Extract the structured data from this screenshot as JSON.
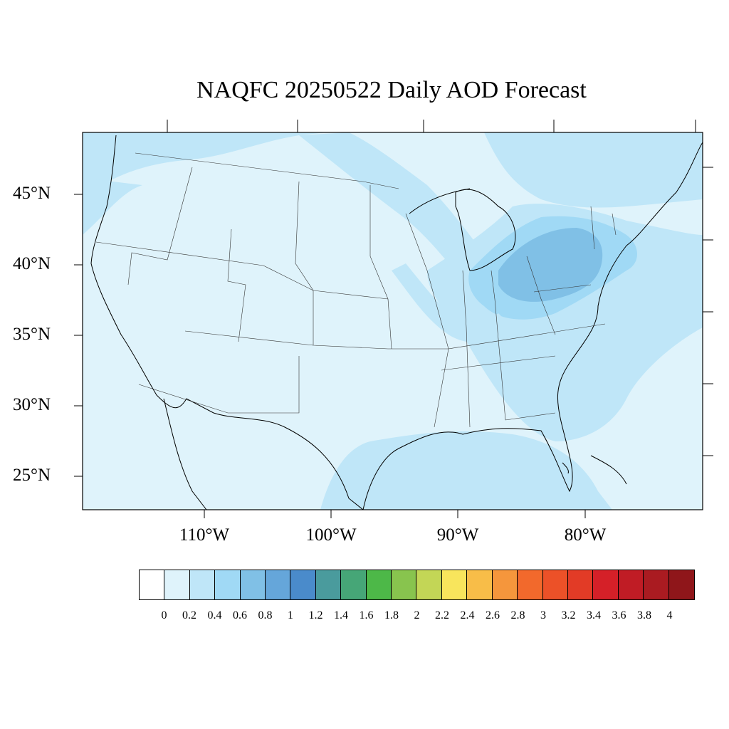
{
  "title": "NAQFC 20250522 Daily AOD Forecast",
  "map": {
    "lat_labels": [
      "45°N",
      "40°N",
      "35°N",
      "30°N",
      "25°N"
    ],
    "lon_labels": [
      "110°W",
      "100°W",
      "90°W",
      "80°W"
    ],
    "colors": {
      "background_aod": "#dff3fb",
      "land_outline": "#000000",
      "state_lines": "#333333"
    }
  },
  "colorbar": {
    "colors": [
      "#ffffff",
      "#dff3fb",
      "#bfe6f8",
      "#a0d9f5",
      "#80c0e6",
      "#65a6da",
      "#4a8bcb",
      "#4a9b9d",
      "#46a677",
      "#4db848",
      "#88c44e",
      "#c3d656",
      "#f8e55c",
      "#f8bd48",
      "#f5963c",
      "#f2692c",
      "#ec5128",
      "#e23b26",
      "#d52028",
      "#c01c25",
      "#aa1b21",
      "#8f161a"
    ],
    "labels": [
      "0",
      "0.2",
      "0.4",
      "0.6",
      "0.8",
      "1",
      "1.2",
      "1.4",
      "1.6",
      "1.8",
      "2",
      "2.2",
      "2.4",
      "2.6",
      "2.8",
      "3",
      "3.2",
      "3.4",
      "3.6",
      "3.8",
      "4"
    ]
  }
}
